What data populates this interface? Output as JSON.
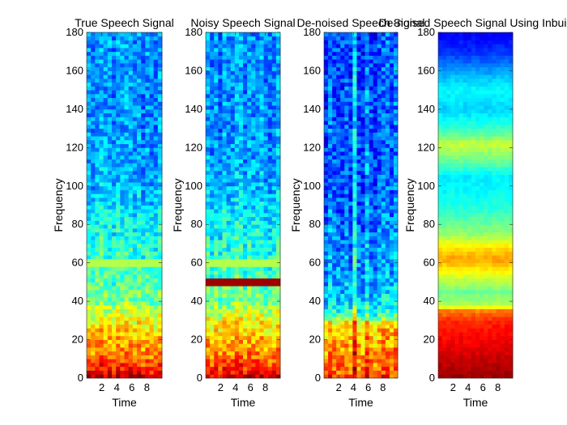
{
  "figure_note": "Four spectrogram panels side by side",
  "chart_data": [
    {
      "type": "heatmap",
      "title": "True Speech Signal",
      "xlabel": "Time",
      "ylabel": "Frequency",
      "xlim": [
        0,
        10
      ],
      "ylim": [
        0,
        180
      ],
      "xticks": [
        2,
        4,
        6,
        8
      ],
      "yticks": [
        0,
        20,
        40,
        60,
        80,
        100,
        120,
        140,
        160,
        180
      ],
      "colormap": "jet",
      "color_scale": [
        0,
        1
      ],
      "frequency_profile": [
        [
          0,
          0.96
        ],
        [
          3,
          0.88
        ],
        [
          8,
          0.8
        ],
        [
          16,
          0.72
        ],
        [
          24,
          0.67
        ],
        [
          30,
          0.62
        ],
        [
          35,
          0.55
        ],
        [
          42,
          0.48
        ],
        [
          60,
          0.42
        ],
        [
          80,
          0.38
        ],
        [
          100,
          0.3
        ],
        [
          140,
          0.26
        ],
        [
          180,
          0.27
        ]
      ],
      "noise_amplitude": 0.09,
      "time_bins": 18,
      "frequency_bins": 90,
      "lines": [
        {
          "frequency": 60,
          "value": 0.55
        }
      ]
    },
    {
      "type": "heatmap",
      "title": "Noisy Speech Signal",
      "xlabel": "Time",
      "ylabel": "Frequency",
      "xlim": [
        0,
        10
      ],
      "ylim": [
        0,
        180
      ],
      "xticks": [
        2,
        4,
        6,
        8
      ],
      "yticks": [
        0,
        20,
        40,
        60,
        80,
        100,
        120,
        140,
        160,
        180
      ],
      "colormap": "jet",
      "color_scale": [
        0,
        1
      ],
      "frequency_profile": [
        [
          0,
          0.96
        ],
        [
          3,
          0.88
        ],
        [
          8,
          0.8
        ],
        [
          16,
          0.72
        ],
        [
          24,
          0.67
        ],
        [
          30,
          0.62
        ],
        [
          35,
          0.55
        ],
        [
          42,
          0.48
        ],
        [
          60,
          0.42
        ],
        [
          80,
          0.38
        ],
        [
          100,
          0.3
        ],
        [
          140,
          0.26
        ],
        [
          180,
          0.27
        ]
      ],
      "noise_amplitude": 0.09,
      "time_bins": 18,
      "frequency_bins": 90,
      "lines": [
        {
          "frequency": 60,
          "value": 0.55
        },
        {
          "frequency": 50,
          "value": 0.97
        }
      ]
    },
    {
      "type": "heatmap",
      "title": "De-noised Speech Signal",
      "xlabel": "Time",
      "ylabel": "Frequency",
      "xlim": [
        0,
        10
      ],
      "ylim": [
        0,
        180
      ],
      "xticks": [
        2,
        4,
        6,
        8
      ],
      "yticks": [
        0,
        20,
        40,
        60,
        80,
        100,
        120,
        140,
        160,
        180
      ],
      "colormap": "jet",
      "color_scale": [
        0,
        1
      ],
      "frequency_profile": [
        [
          0,
          0.8
        ],
        [
          10,
          0.75
        ],
        [
          20,
          0.7
        ],
        [
          28,
          0.66
        ],
        [
          32,
          0.45
        ],
        [
          40,
          0.33
        ],
        [
          60,
          0.27
        ],
        [
          100,
          0.21
        ],
        [
          180,
          0.2
        ]
      ],
      "noise_amplitude": 0.1,
      "time_bins": 18,
      "frequency_bins": 90,
      "bright_columns": [
        {
          "time": 4.3,
          "boost": 0.16
        },
        {
          "time": 5.8,
          "boost": 0.08
        }
      ],
      "lines": []
    },
    {
      "type": "heatmap",
      "title": "De-noised Speech Signal Using Inbuilt",
      "xlabel": "Time",
      "ylabel": "Frequency",
      "xlim": [
        0,
        10
      ],
      "ylim": [
        0,
        180
      ],
      "xticks": [
        2,
        4,
        6,
        8
      ],
      "yticks": [
        0,
        20,
        40,
        60,
        80,
        100,
        120,
        140,
        160,
        180
      ],
      "colormap": "jet",
      "color_scale": [
        0,
        1
      ],
      "frequency_profile": [
        [
          0,
          0.98
        ],
        [
          10,
          0.93
        ],
        [
          20,
          0.88
        ],
        [
          30,
          0.84
        ],
        [
          35,
          0.75
        ],
        [
          38,
          0.55
        ],
        [
          45,
          0.48
        ],
        [
          55,
          0.62
        ],
        [
          62,
          0.72
        ],
        [
          68,
          0.65
        ],
        [
          75,
          0.52
        ],
        [
          90,
          0.4
        ],
        [
          105,
          0.36
        ],
        [
          115,
          0.5
        ],
        [
          122,
          0.57
        ],
        [
          128,
          0.45
        ],
        [
          140,
          0.33
        ],
        [
          150,
          0.38
        ],
        [
          158,
          0.3
        ],
        [
          170,
          0.17
        ],
        [
          180,
          0.12
        ]
      ],
      "noise_amplitude": 0.02,
      "time_bins": 18,
      "frequency_bins": 90,
      "lines": []
    }
  ]
}
